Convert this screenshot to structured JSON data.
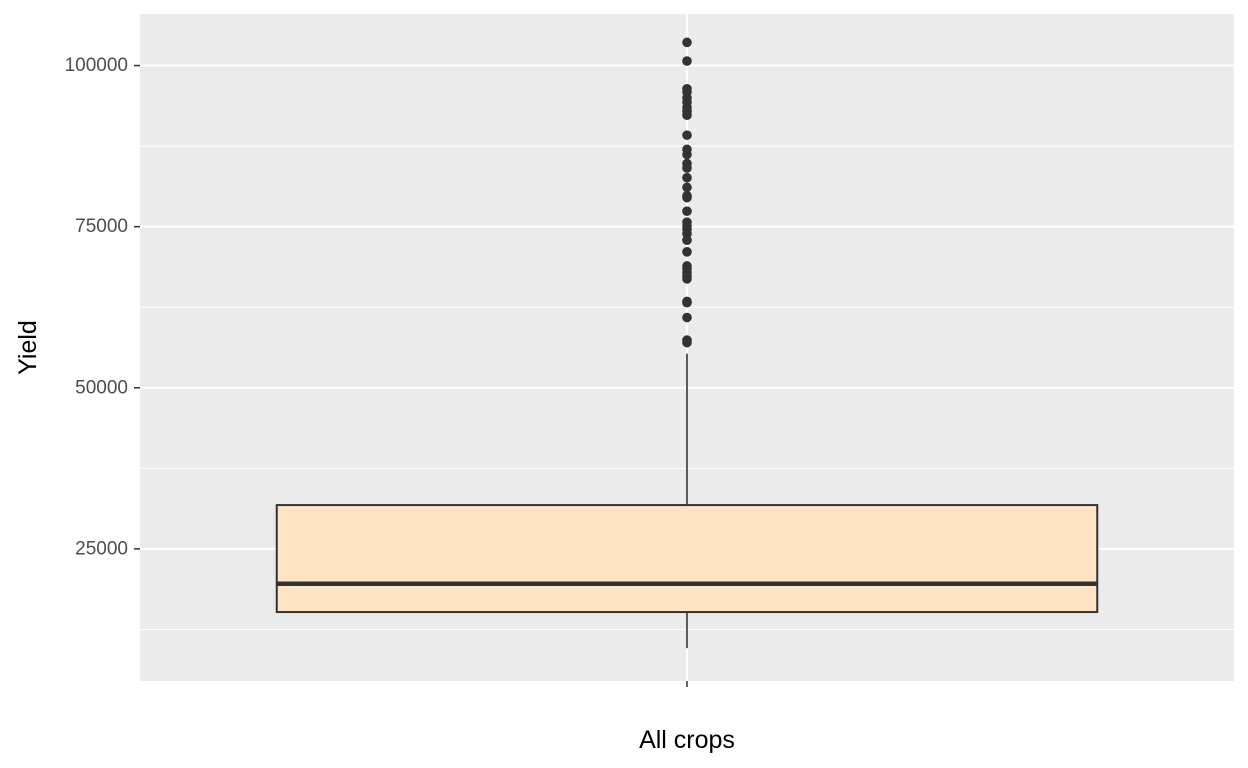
{
  "chart_data": {
    "type": "boxplot",
    "title": "",
    "xlabel": "",
    "ylabel": "Yield",
    "categories": [
      "All crops"
    ],
    "ylim": [
      4500,
      108000
    ],
    "y_ticks": [
      25000,
      50000,
      75000,
      100000
    ],
    "y_tick_labels": [
      "25000",
      "50000",
      "75000",
      "100000"
    ],
    "grid": true,
    "legend": "none",
    "boxes": [
      {
        "category": "All crops",
        "whisker_low": 9600,
        "q1": 15200,
        "median": 19600,
        "q3": 31800,
        "whisker_high": 55300,
        "outliers": [
          57000,
          57400,
          60900,
          63200,
          63400,
          66900,
          67300,
          67900,
          68500,
          68900,
          71100,
          72900,
          73900,
          74600,
          75100,
          75700,
          77400,
          79500,
          79800,
          81100,
          82600,
          84100,
          84800,
          86200,
          87000,
          89200,
          92300,
          92900,
          93500,
          94300,
          95000,
          95900,
          96400,
          100700,
          103600
        ]
      }
    ],
    "colors": {
      "panel_background": "#EBEBEB",
      "grid": "#FFFFFF",
      "box_fill": "#FFE4C4",
      "box_stroke": "#333333",
      "outlier": "#333333",
      "tick_text": "#4D4D4D",
      "axis_title": "#000000"
    }
  }
}
